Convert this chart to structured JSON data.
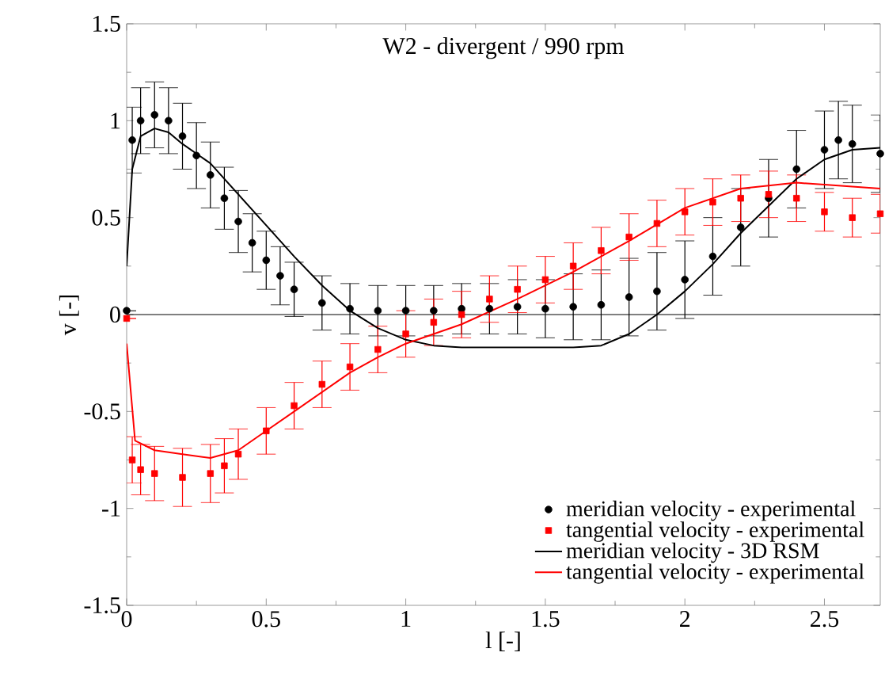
{
  "chart_data": {
    "type": "line",
    "title": "W2 - divergent / 990 rpm",
    "xlabel": "l [-]",
    "ylabel": "v [-]",
    "xlim": [
      0,
      2.7
    ],
    "ylim": [
      -1.5,
      1.5
    ],
    "xticks": [
      0,
      0.5,
      1,
      1.5,
      2,
      2.5
    ],
    "yticks": [
      -1.5,
      -1,
      -0.5,
      0,
      0.5,
      1,
      1.5
    ],
    "grid": false,
    "legend": "bottom right",
    "ref_lines": [
      {
        "axis": "y",
        "value": 0,
        "color": "#000000"
      }
    ],
    "series": [
      {
        "name": "meridian velocity - experimental",
        "type": "scatter",
        "marker": "circle",
        "color": "#000000",
        "x": [
          0,
          0.02,
          0.05,
          0.1,
          0.15,
          0.2,
          0.25,
          0.3,
          0.35,
          0.4,
          0.45,
          0.5,
          0.55,
          0.6,
          0.7,
          0.8,
          0.9,
          1.0,
          1.1,
          1.2,
          1.3,
          1.4,
          1.5,
          1.6,
          1.7,
          1.8,
          1.9,
          2.0,
          2.1,
          2.2,
          2.3,
          2.4,
          2.5,
          2.55,
          2.6,
          2.7
        ],
        "values": [
          0.02,
          0.9,
          1.0,
          1.03,
          1.0,
          0.92,
          0.82,
          0.72,
          0.6,
          0.48,
          0.37,
          0.28,
          0.2,
          0.13,
          0.06,
          0.03,
          0.02,
          0.02,
          0.02,
          0.03,
          0.03,
          0.04,
          0.03,
          0.04,
          0.05,
          0.09,
          0.12,
          0.18,
          0.3,
          0.45,
          0.6,
          0.75,
          0.85,
          0.9,
          0.88,
          0.83
        ],
        "errors": [
          null,
          0.17,
          0.17,
          0.17,
          0.17,
          0.17,
          0.17,
          0.17,
          0.16,
          0.16,
          0.15,
          0.15,
          0.15,
          0.14,
          0.14,
          0.13,
          0.13,
          0.13,
          0.13,
          0.13,
          0.13,
          0.14,
          0.15,
          0.17,
          0.18,
          0.2,
          0.2,
          0.2,
          0.2,
          0.2,
          0.2,
          0.2,
          0.2,
          0.2,
          0.2,
          0.2
        ]
      },
      {
        "name": "tangential velocity - experimental",
        "type": "scatter",
        "marker": "square",
        "color": "#ff0000",
        "x": [
          0,
          0.02,
          0.05,
          0.1,
          0.2,
          0.3,
          0.35,
          0.4,
          0.5,
          0.6,
          0.7,
          0.8,
          0.9,
          1.0,
          1.1,
          1.2,
          1.3,
          1.4,
          1.5,
          1.6,
          1.7,
          1.8,
          1.9,
          2.0,
          2.1,
          2.2,
          2.3,
          2.4,
          2.5,
          2.6,
          2.7
        ],
        "values": [
          -0.02,
          -0.75,
          -0.8,
          -0.82,
          -0.84,
          -0.82,
          -0.78,
          -0.72,
          -0.6,
          -0.47,
          -0.36,
          -0.27,
          -0.18,
          -0.1,
          -0.04,
          0.0,
          0.08,
          0.13,
          0.18,
          0.25,
          0.33,
          0.4,
          0.47,
          0.53,
          0.58,
          0.6,
          0.62,
          0.6,
          0.53,
          0.5,
          0.52
        ],
        "errors": [
          null,
          0.12,
          0.13,
          0.14,
          0.15,
          0.15,
          0.14,
          0.13,
          0.12,
          0.12,
          0.12,
          0.12,
          0.12,
          0.12,
          0.12,
          0.12,
          0.12,
          0.12,
          0.12,
          0.12,
          0.12,
          0.12,
          0.12,
          0.12,
          0.12,
          0.12,
          0.12,
          0.12,
          0.1,
          0.1,
          0.1
        ]
      },
      {
        "name": "meridian velocity - 3D RSM",
        "marker": "none",
        "color": "#000000",
        "x": [
          0,
          0.02,
          0.05,
          0.1,
          0.15,
          0.2,
          0.3,
          0.4,
          0.5,
          0.6,
          0.7,
          0.8,
          0.9,
          1.0,
          1.1,
          1.2,
          1.4,
          1.6,
          1.7,
          1.8,
          1.9,
          2.0,
          2.1,
          2.2,
          2.3,
          2.4,
          2.5,
          2.6,
          2.7
        ],
        "values": [
          0.25,
          0.75,
          0.92,
          0.96,
          0.94,
          0.88,
          0.78,
          0.62,
          0.46,
          0.3,
          0.15,
          0.02,
          -0.07,
          -0.13,
          -0.16,
          -0.17,
          -0.17,
          -0.17,
          -0.16,
          -0.1,
          0.0,
          0.12,
          0.26,
          0.42,
          0.56,
          0.7,
          0.8,
          0.85,
          0.86
        ]
      },
      {
        "name": "tangential velocity - experimental",
        "marker": "none",
        "color": "#ff0000",
        "x": [
          0,
          0.03,
          0.1,
          0.2,
          0.3,
          0.4,
          0.5,
          0.6,
          0.7,
          0.8,
          0.9,
          1.0,
          1.2,
          1.4,
          1.6,
          1.8,
          2.0,
          2.2,
          2.4,
          2.5,
          2.6,
          2.7
        ],
        "values": [
          -0.15,
          -0.65,
          -0.7,
          -0.72,
          -0.74,
          -0.7,
          -0.6,
          -0.5,
          -0.4,
          -0.3,
          -0.22,
          -0.15,
          -0.05,
          0.08,
          0.22,
          0.38,
          0.55,
          0.65,
          0.68,
          0.67,
          0.66,
          0.65
        ]
      }
    ]
  }
}
